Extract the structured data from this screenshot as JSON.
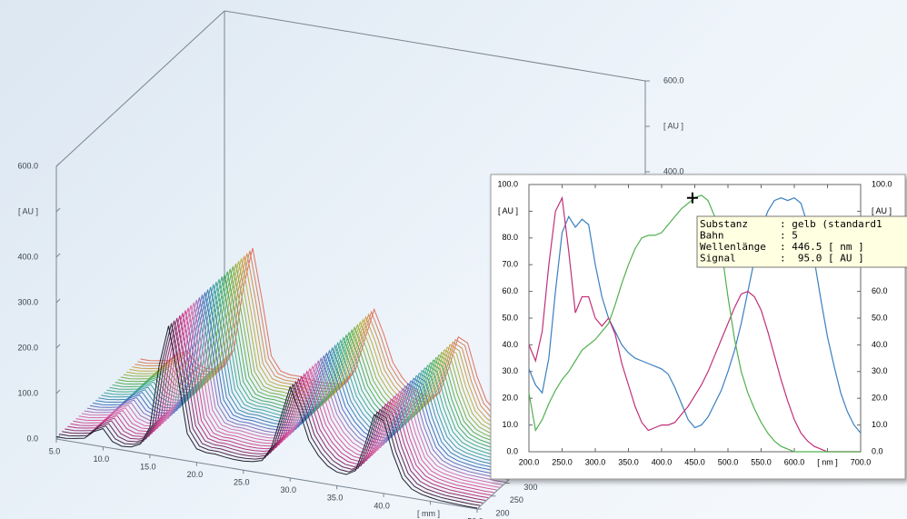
{
  "chart_data": [
    {
      "type": "waterfall",
      "xlim": [
        5,
        50
      ],
      "ylim": [
        0,
        600
      ],
      "zlim": [
        200,
        800
      ],
      "xticks": [
        {
          "value": 5,
          "label": "5.0"
        },
        {
          "value": 10,
          "label": "10.0"
        },
        {
          "value": 15,
          "label": "15.0"
        },
        {
          "value": 20,
          "label": "20.0"
        },
        {
          "value": 25,
          "label": "25.0"
        },
        {
          "value": 30,
          "label": "30.0"
        },
        {
          "value": 35,
          "label": "35.0"
        },
        {
          "value": 40,
          "label": "40.0"
        },
        {
          "value": 45,
          "label": "[ mm ]"
        },
        {
          "value": 50,
          "label": "50.0"
        }
      ],
      "yticks": [
        {
          "value": 0,
          "label": "0.0"
        },
        {
          "value": 100,
          "label": "100.0"
        },
        {
          "value": 200,
          "label": "200.0"
        },
        {
          "value": 300,
          "label": "300.0"
        },
        {
          "value": 400,
          "label": "400.0"
        },
        {
          "value": 500,
          "label": "[ AU ]"
        },
        {
          "value": 600,
          "label": "600.0"
        }
      ],
      "zticks": [
        200,
        250,
        300
      ],
      "colors": [
        "#202030",
        "#c03080",
        "#e070b0",
        "#4070c0",
        "#40a8a0",
        "#50b050",
        "#c0b040",
        "#e07060"
      ],
      "z": [
        200,
        210,
        220,
        230,
        240,
        250,
        260,
        270,
        280,
        290,
        300,
        310,
        320,
        330,
        340,
        350,
        360,
        370,
        380,
        390,
        400,
        410,
        420,
        430,
        440,
        450,
        460,
        470,
        480,
        490,
        500
      ],
      "x": [
        5,
        6,
        7,
        8,
        9,
        10,
        11,
        12,
        13,
        14,
        15,
        16,
        17,
        18,
        19,
        20,
        21,
        22,
        23,
        24,
        25,
        26,
        27,
        28,
        29,
        30,
        31,
        32,
        33,
        34,
        35,
        36,
        37,
        38,
        39,
        40,
        41,
        42,
        43,
        44,
        45,
        46,
        47,
        48,
        49,
        50
      ],
      "values": [
        5,
        5,
        8,
        12,
        30,
        40,
        15,
        8,
        10,
        20,
        60,
        200,
        290,
        180,
        60,
        30,
        25,
        25,
        22,
        20,
        20,
        22,
        28,
        60,
        130,
        200,
        150,
        90,
        60,
        40,
        30,
        28,
        40,
        100,
        170,
        160,
        90,
        40,
        20,
        12,
        8,
        5,
        4,
        3,
        2,
        2
      ]
    },
    {
      "type": "line",
      "xlim": [
        200,
        700
      ],
      "ylim": [
        0,
        100
      ],
      "xticks": [
        {
          "value": 200,
          "label": "200.0"
        },
        {
          "value": 250,
          "label": "250.0"
        },
        {
          "value": 300,
          "label": "300.0"
        },
        {
          "value": 350,
          "label": "350.0"
        },
        {
          "value": 400,
          "label": "400.0"
        },
        {
          "value": 450,
          "label": "450.0"
        },
        {
          "value": 500,
          "label": "500.0"
        },
        {
          "value": 550,
          "label": "550.0"
        },
        {
          "value": 600,
          "label": "600.0"
        },
        {
          "value": 650,
          "label": "[ nm ]"
        },
        {
          "value": 700,
          "label": "700.0"
        }
      ],
      "yticks": [
        {
          "value": 0,
          "label": "0.0"
        },
        {
          "value": 10,
          "label": "10.0"
        },
        {
          "value": 20,
          "label": "20.0"
        },
        {
          "value": 30,
          "label": "30.0"
        },
        {
          "value": 40,
          "label": "40.0"
        },
        {
          "value": 50,
          "label": "50.0"
        },
        {
          "value": 60,
          "label": "60.0"
        },
        {
          "value": 70,
          "label": "70.0"
        },
        {
          "value": 80,
          "label": "80.0"
        },
        {
          "value": 90,
          "label": "[ AU ]"
        },
        {
          "value": 100,
          "label": "100.0"
        }
      ],
      "x": [
        200,
        210,
        220,
        230,
        240,
        250,
        260,
        270,
        280,
        290,
        300,
        310,
        320,
        330,
        340,
        350,
        360,
        370,
        380,
        390,
        400,
        410,
        420,
        430,
        440,
        450,
        460,
        470,
        480,
        490,
        500,
        510,
        520,
        530,
        540,
        550,
        560,
        570,
        580,
        590,
        600,
        610,
        620,
        630,
        640,
        650,
        660,
        670,
        680,
        690,
        700
      ],
      "series": [
        {
          "color": "#3a7fc0",
          "values": [
            31,
            25,
            22,
            35,
            60,
            82,
            88,
            84,
            87,
            85,
            70,
            58,
            50,
            45,
            40,
            37,
            35,
            34,
            33,
            32,
            31,
            29,
            24,
            18,
            12,
            9,
            10,
            13,
            18,
            23,
            30,
            38,
            48,
            60,
            72,
            83,
            90,
            94,
            95,
            94,
            95,
            93,
            85,
            72,
            57,
            43,
            32,
            22,
            15,
            10,
            7
          ]
        },
        {
          "color": "#c0307a",
          "values": [
            40,
            34,
            45,
            70,
            90,
            95,
            75,
            52,
            58,
            58,
            50,
            47,
            50,
            44,
            33,
            25,
            17,
            11,
            8,
            9,
            10,
            10,
            11,
            14,
            17,
            21,
            25,
            30,
            36,
            42,
            48,
            54,
            59,
            60,
            58,
            53,
            45,
            36,
            27,
            19,
            12,
            7,
            4,
            2,
            1,
            0,
            0,
            0,
            0,
            0,
            0
          ]
        },
        {
          "color": "#50b050",
          "values": [
            22,
            8,
            12,
            18,
            23,
            27,
            30,
            34,
            38,
            40,
            42,
            45,
            48,
            55,
            63,
            70,
            76,
            80,
            81,
            81,
            82,
            85,
            88,
            91,
            93,
            95,
            96,
            94,
            88,
            76,
            58,
            42,
            30,
            22,
            16,
            11,
            7,
            4,
            2,
            1,
            0,
            0,
            0,
            0,
            0,
            0,
            0,
            0,
            0,
            0,
            0
          ]
        }
      ],
      "cursor": {
        "x": 446.5,
        "y": 95
      },
      "tooltip": [
        [
          "Substanz",
          ": gelb (standard1"
        ],
        [
          "Bahn",
          ": 5"
        ],
        [
          "Wellenlänge",
          ": 446.5 [ nm ]"
        ],
        [
          "Signal",
          ":  95.0 [ AU ]"
        ]
      ]
    }
  ]
}
